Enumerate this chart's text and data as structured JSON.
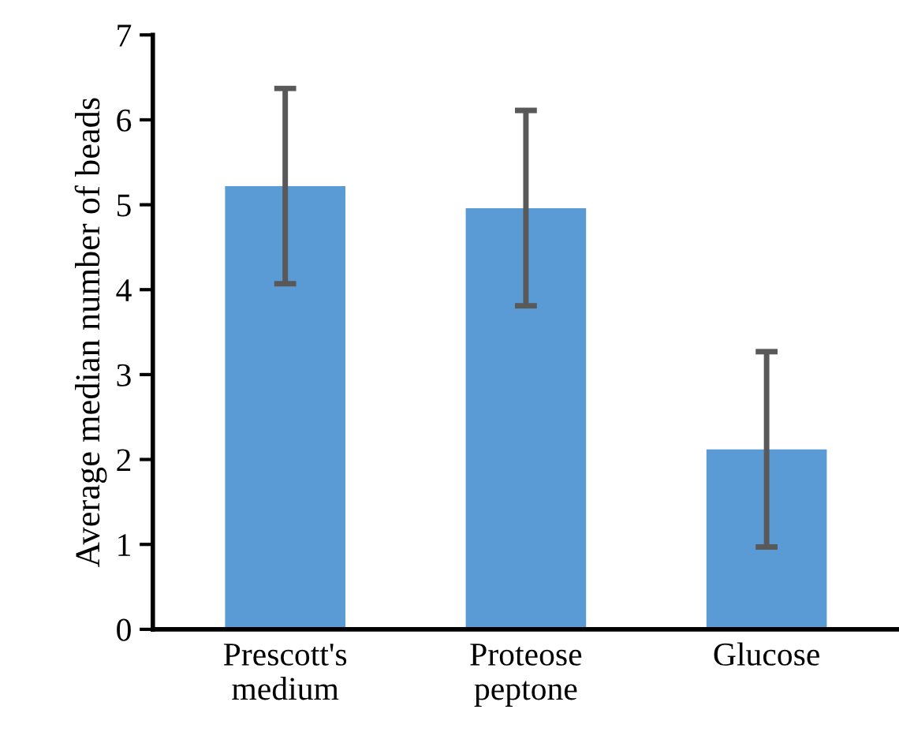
{
  "chart_data": {
    "type": "bar",
    "ylabel": "Average median number of beads",
    "categories": [
      "Prescott's medium",
      "Proteose peptone",
      "Glucose"
    ],
    "values": [
      5.22,
      4.96,
      2.12
    ],
    "errors": [
      1.15,
      1.15,
      1.15
    ],
    "color": "#5b9bd5",
    "ylim": [
      0,
      7
    ],
    "yticks": [
      0,
      1,
      2,
      3,
      4,
      5,
      6,
      7
    ],
    "grid": false,
    "legend": false
  }
}
